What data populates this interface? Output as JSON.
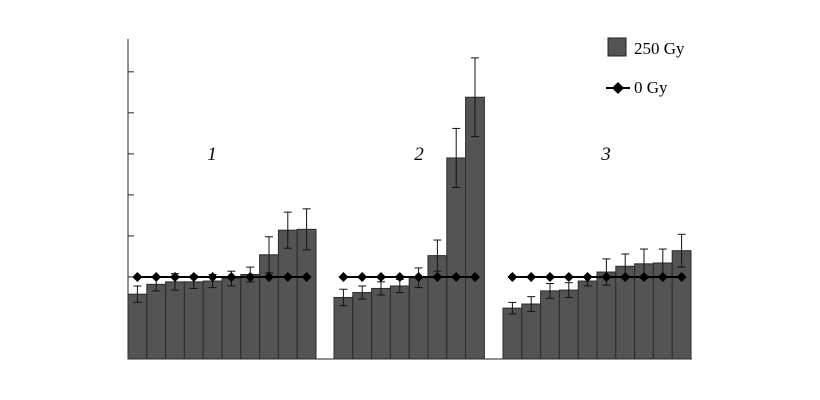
{
  "chart_data": {
    "type": "bar",
    "title": "",
    "xlabel": "",
    "ylabel": "",
    "ylim": [
      0,
      3.9
    ],
    "y_ticks": [
      0.5,
      1.0,
      1.5,
      2.0,
      2.5,
      3.0,
      3.5
    ],
    "y_tick_labels_shown": false,
    "grid": false,
    "legend_position": "top-right",
    "bar_color": "#545454",
    "line_color": "#000000",
    "groups": [
      {
        "label": "1",
        "series": [
          {
            "name": "250 Gy",
            "values": [
              0.79,
              0.91,
              0.94,
              0.94,
              0.95,
              0.98,
              1.03,
              1.27,
              1.57,
              1.58
            ],
            "errors": [
              0.1,
              0.08,
              0.1,
              0.08,
              0.08,
              0.09,
              0.09,
              0.22,
              0.22,
              0.25
            ]
          },
          {
            "name": "0 Gy",
            "values": [
              1.0,
              1.0,
              1.0,
              1.0,
              1.0,
              1.0,
              1.0,
              1.0,
              1.0,
              1.0
            ],
            "errors": [
              0.01,
              0.01,
              0.01,
              0.01,
              0.01,
              0.01,
              0.01,
              0.01,
              0.01,
              0.01
            ]
          }
        ]
      },
      {
        "label": "2",
        "series": [
          {
            "name": "250 Gy",
            "values": [
              0.75,
              0.81,
              0.86,
              0.89,
              0.99,
              1.26,
              2.45,
              3.19
            ],
            "errors": [
              0.1,
              0.08,
              0.08,
              0.08,
              0.12,
              0.19,
              0.36,
              0.48
            ]
          },
          {
            "name": "0 Gy",
            "values": [
              1.0,
              1.0,
              1.0,
              1.0,
              1.0,
              1.0,
              1.0,
              1.0
            ],
            "errors": [
              0.01,
              0.01,
              0.01,
              0.01,
              0.01,
              0.01,
              0.01,
              0.01
            ]
          }
        ]
      },
      {
        "label": "3",
        "series": [
          {
            "name": "250 Gy",
            "values": [
              0.62,
              0.67,
              0.83,
              0.84,
              0.95,
              1.06,
              1.13,
              1.16,
              1.17,
              1.32
            ],
            "errors": [
              0.07,
              0.09,
              0.09,
              0.09,
              0.06,
              0.16,
              0.15,
              0.18,
              0.17,
              0.2
            ]
          },
          {
            "name": "0 Gy",
            "values": [
              1.0,
              1.0,
              1.0,
              1.0,
              1.0,
              1.0,
              1.0,
              1.0,
              1.0,
              1.0
            ],
            "errors": [
              0.01,
              0.01,
              0.01,
              0.01,
              0.01,
              0.01,
              0.01,
              0.01,
              0.01,
              0.01
            ]
          }
        ]
      }
    ],
    "legend": [
      {
        "name": "250 Gy",
        "marker": "bar"
      },
      {
        "name": "0 Gy",
        "marker": "line-diamond"
      }
    ]
  }
}
